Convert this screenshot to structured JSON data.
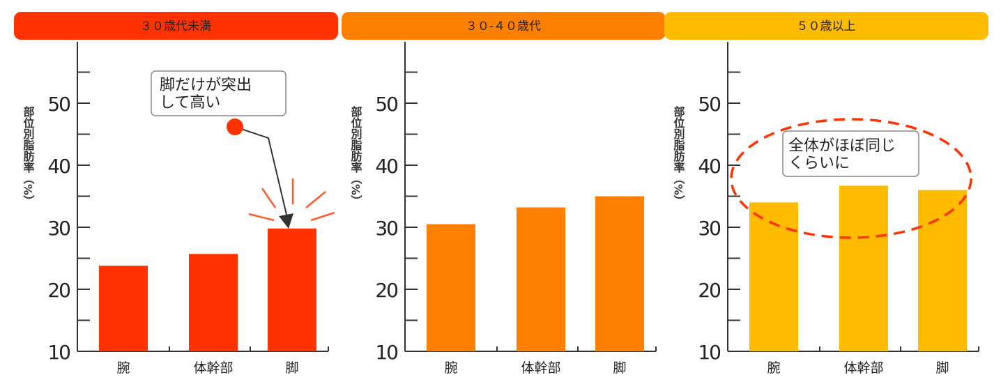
{
  "chart_data": [
    {
      "type": "bar",
      "title": "３０歳代未満",
      "ylabel": "部位別脂肪率（%）",
      "categories": [
        "腕",
        "体幹部",
        "脚"
      ],
      "values": [
        23.8,
        25.7,
        29.8
      ],
      "ylim": [
        10,
        60
      ],
      "yticks": [
        10,
        20,
        30,
        40,
        50
      ],
      "color": "#ff3300",
      "annotation": "脚だけが突出\nして高い"
    },
    {
      "type": "bar",
      "title": "３０-４０歳代",
      "ylabel": "部位別脂肪率（%）",
      "categories": [
        "腕",
        "体幹部",
        "脚"
      ],
      "values": [
        30.5,
        33.2,
        35.0
      ],
      "ylim": [
        10,
        60
      ],
      "yticks": [
        10,
        20,
        30,
        40,
        50
      ],
      "color": "#ff8000"
    },
    {
      "type": "bar",
      "title": "５０歳以上",
      "ylabel": "部位別脂肪率（%）",
      "categories": [
        "腕",
        "体幹部",
        "脚"
      ],
      "values": [
        34.0,
        36.7,
        36.0
      ],
      "ylim": [
        10,
        60
      ],
      "yticks": [
        10,
        20,
        30,
        40,
        50
      ],
      "color": "#ffbb00",
      "annotation": "全体がほぼ同じ\nくらいに"
    }
  ]
}
